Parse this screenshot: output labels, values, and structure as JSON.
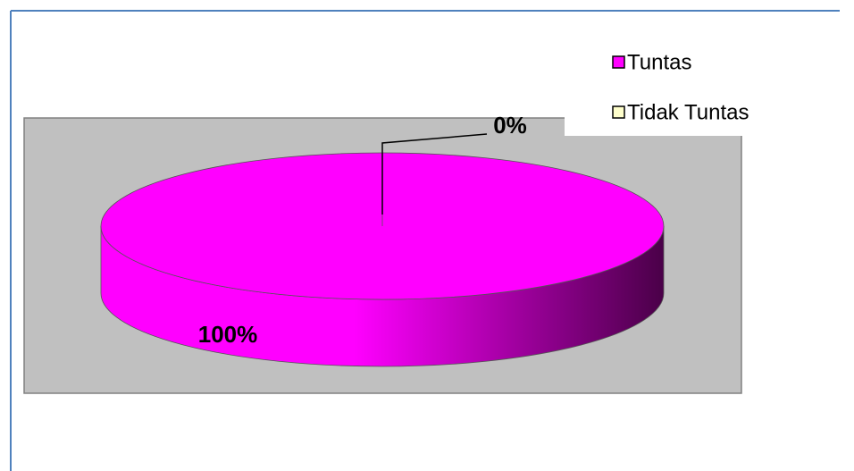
{
  "chart_data": {
    "type": "pie",
    "categories": [
      "Tuntas",
      "Tidak Tuntas"
    ],
    "values": [
      100,
      0
    ],
    "value_labels": [
      "100%",
      "0%"
    ],
    "colors": [
      "#ff00ff",
      "#ffffcc"
    ],
    "legend": "top-right"
  }
}
